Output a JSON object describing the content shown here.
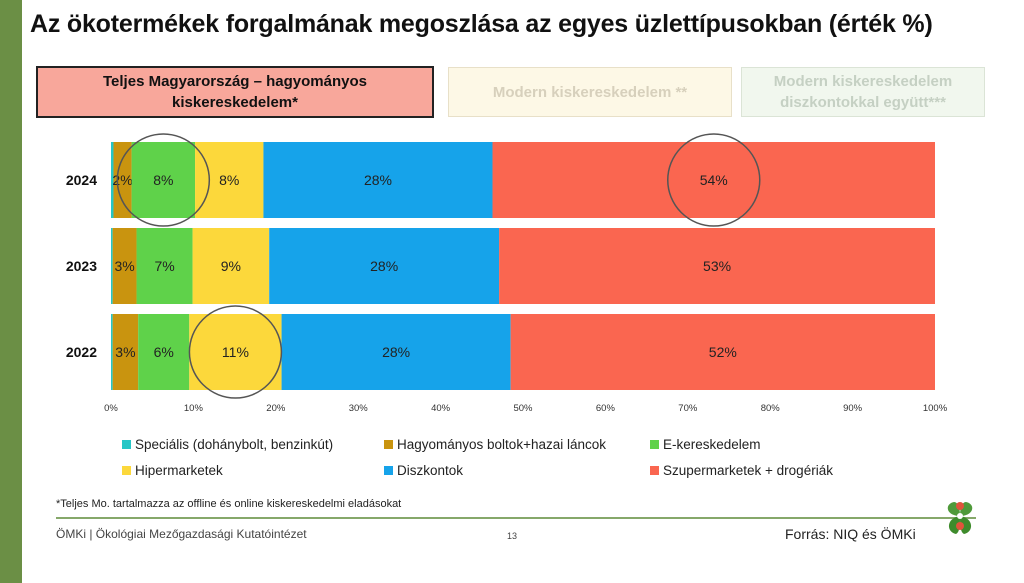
{
  "title": "Az ökotermékek forgalmának megoszlása az egyes üzlettípusokban (érték %)",
  "tabs": [
    {
      "label": "Teljes Magyarország – hagyományos kiskereskedelem*",
      "active": true
    },
    {
      "label": "Modern kiskereskedelem **",
      "active": false
    },
    {
      "label": "Modern kiskereskedelem diszkontokkal együtt***",
      "active": false
    }
  ],
  "chart_data": {
    "type": "bar",
    "orientation": "horizontal",
    "stacked": true,
    "categories": [
      "2024",
      "2023",
      "2022"
    ],
    "series": [
      {
        "name": "Speciális (dohánybolt, benzinkút)",
        "color": "#26c6c6",
        "values": [
          0.3,
          0.2,
          0.2
        ],
        "labels": [
          "",
          "",
          ""
        ]
      },
      {
        "name": "Hagyományos boltok+hazai láncok",
        "color": "#c9940f",
        "values": [
          2.2,
          2.9,
          3.1
        ],
        "labels": [
          "2%",
          "3%",
          "3%"
        ]
      },
      {
        "name": "E-kereskedelem",
        "color": "#5fd24a",
        "values": [
          7.7,
          6.8,
          6.2
        ],
        "labels": [
          "8%",
          "7%",
          "6%"
        ]
      },
      {
        "name": "Hipermarketek",
        "color": "#fcd83b",
        "values": [
          8.3,
          9.3,
          11.2
        ],
        "labels": [
          "8%",
          "9%",
          "11%"
        ]
      },
      {
        "name": "Diszkontok",
        "color": "#16a3ea",
        "values": [
          27.8,
          27.9,
          27.8
        ],
        "labels": [
          "28%",
          "28%",
          "28%"
        ]
      },
      {
        "name": "Szupermarketek + drogériák",
        "color": "#fa6650",
        "values": [
          53.7,
          52.9,
          51.5
        ],
        "labels": [
          "54%",
          "53%",
          "52%"
        ]
      }
    ],
    "xlim": [
      0,
      100
    ],
    "xticks": [
      "0%",
      "10%",
      "20%",
      "30%",
      "40%",
      "50%",
      "60%",
      "70%",
      "80%",
      "90%",
      "100%"
    ],
    "highlights": [
      {
        "category": "2024",
        "series": "E-kereskedelem"
      },
      {
        "category": "2024",
        "series": "Szupermarketek + drogériák"
      },
      {
        "category": "2022",
        "series": "Hipermarketek"
      }
    ],
    "legend_position": "bottom",
    "grid": false
  },
  "footnote": "*Teljes Mo. tartalmazza az offline és online kiskereskedelmi eladásokat",
  "footer": {
    "org": "ÖMKi | Ökológiai Mezőgazdasági Kutatóintézet",
    "page_number": "13",
    "source": "Forrás: NIQ és ÖMKi"
  },
  "colors": {
    "accent": "#6b8f45",
    "logo_red": "#e0543c"
  },
  "icons": {
    "logo": "leaf-clover-logo"
  }
}
